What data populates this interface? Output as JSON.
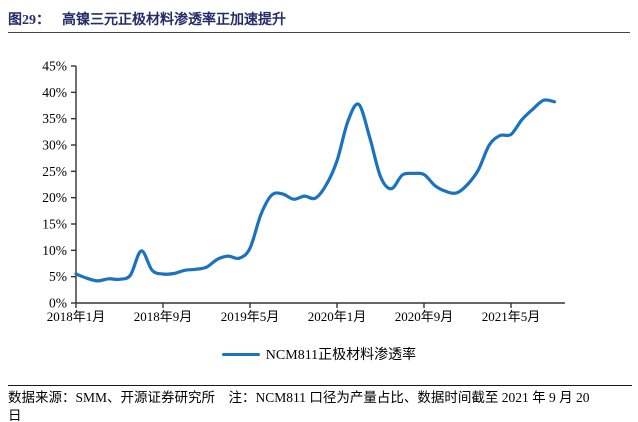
{
  "page": {
    "figure_label": "图29：",
    "figure_title": "高镍三元正极材料渗透率正加速提升"
  },
  "colors": {
    "title": "#252C6A",
    "line": "#1B72C0",
    "axis": "#333333"
  },
  "chart_data": {
    "type": "line",
    "title": "高镍三元正极材料渗透率正加速提升",
    "x": [
      "2018年1月",
      "2018年2月",
      "2018年3月",
      "2018年4月",
      "2018年5月",
      "2018年6月",
      "2018年7月",
      "2018年8月",
      "2018年9月",
      "2018年10月",
      "2018年11月",
      "2018年12月",
      "2019年1月",
      "2019年2月",
      "2019年3月",
      "2019年4月",
      "2019年5月",
      "2019年6月",
      "2019年7月",
      "2019年8月",
      "2019年9月",
      "2019年10月",
      "2019年11月",
      "2019年12月",
      "2020年1月",
      "2020年2月",
      "2020年3月",
      "2020年4月",
      "2020年5月",
      "2020年6月",
      "2020年7月",
      "2020年8月",
      "2020年9月",
      "2020年10月",
      "2020年11月",
      "2020年12月",
      "2021年1月",
      "2021年2月",
      "2021年3月",
      "2021年4月",
      "2021年5月",
      "2021年6月",
      "2021年7月",
      "2021年8月",
      "2021年9月"
    ],
    "series": [
      {
        "name": "NCM811正极材料渗透率",
        "color": "#1B72C0",
        "values": [
          5.5,
          4.7,
          4.2,
          4.6,
          4.5,
          5.3,
          9.9,
          6.2,
          5.5,
          5.6,
          6.2,
          6.4,
          6.8,
          8.3,
          8.9,
          8.5,
          10.4,
          16.8,
          20.5,
          20.7,
          19.7,
          20.3,
          19.9,
          22.4,
          27.0,
          34.5,
          37.7,
          31.5,
          24.0,
          21.7,
          24.3,
          24.6,
          24.4,
          22.3,
          21.2,
          20.9,
          22.5,
          25.3,
          30.0,
          31.8,
          32.0,
          34.8,
          36.8,
          38.5,
          38.2
        ]
      }
    ],
    "ylim": [
      0,
      45
    ],
    "y_tick_step": 5,
    "y_tick_labels": [
      "0%",
      "5%",
      "10%",
      "15%",
      "20%",
      "25%",
      "30%",
      "35%",
      "40%",
      "45%"
    ],
    "x_tick_positions": [
      0,
      8,
      16,
      24,
      32,
      40
    ],
    "x_tick_labels": [
      "2018年1月",
      "2018年9月",
      "2019年5月",
      "2020年1月",
      "2020年9月",
      "2021年5月"
    ],
    "grid": false,
    "legend_position": "bottom"
  },
  "legend": {
    "label": "NCM811正极材料渗透率"
  },
  "footer": {
    "line1": "数据来源：SMM、开源证券研究所　注：NCM811 口径为产量占比、数据时间截至 2021 年 9 月 20",
    "line2": "日"
  }
}
